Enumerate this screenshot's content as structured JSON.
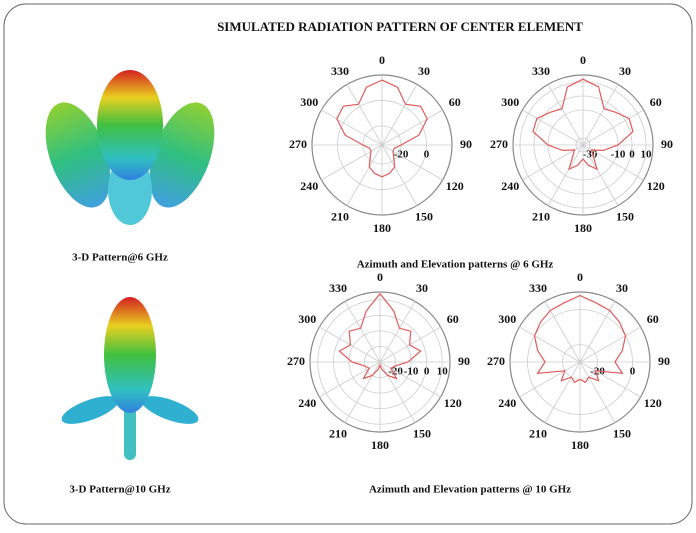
{
  "title": "SIMULATED RADIATION PATTERN OF CENTER ELEMENT",
  "captions": {
    "pattern3d_6": "3-D Pattern@6 GHz",
    "polar_6": "Azimuth and Elevation patterns @ 6 GHz",
    "pattern3d_10": "3-D Pattern@10 GHz",
    "polar_10": "Azimuth and Elevation patterns @ 10 GHz"
  },
  "chart_data": [
    {
      "type": "polar",
      "angles": [
        0,
        30,
        60,
        90,
        120,
        150,
        180,
        210,
        240,
        270,
        300,
        330
      ],
      "rlim": [
        -35,
        20
      ],
      "rticks": [
        -20,
        0
      ],
      "series": [
        {
          "color": "#e05a5a",
          "theta": [
            0,
            15,
            30,
            45,
            60,
            75,
            90,
            105,
            120,
            135,
            150,
            165,
            180,
            195,
            210,
            225,
            240,
            255,
            270,
            285,
            300,
            315,
            330,
            345
          ],
          "values": [
            16,
            12,
            2,
            8,
            6,
            -5,
            -20,
            -25,
            -25,
            -22,
            -15,
            -12,
            -10,
            -12,
            -15,
            -22,
            -25,
            -25,
            -20,
            -5,
            6,
            8,
            2,
            12
          ]
        }
      ]
    },
    {
      "type": "polar",
      "angles": [
        0,
        30,
        60,
        90,
        120,
        150,
        180,
        210,
        240,
        270,
        300,
        330
      ],
      "rlim": [
        -35,
        15
      ],
      "rticks": [
        -30,
        -10,
        0,
        10
      ],
      "series": [
        {
          "color": "#e05a5a",
          "theta": [
            0,
            15,
            30,
            45,
            60,
            75,
            90,
            105,
            120,
            135,
            150,
            165,
            180,
            195,
            210,
            225,
            240,
            255,
            270,
            285,
            300,
            315,
            330,
            345
          ],
          "values": [
            12,
            8,
            -5,
            -2,
            3,
            2,
            -10,
            -20,
            -28,
            -25,
            -15,
            -20,
            -25,
            -20,
            -15,
            -25,
            -28,
            -20,
            -10,
            2,
            3,
            -2,
            -5,
            8
          ]
        }
      ]
    },
    {
      "type": "polar",
      "angles": [
        0,
        30,
        60,
        90,
        120,
        150,
        180,
        210,
        240,
        270,
        300,
        330
      ],
      "rlim": [
        -30,
        15
      ],
      "rticks": [
        -20,
        -10,
        0,
        10
      ],
      "series": [
        {
          "color": "#e05a5a",
          "theta": [
            0,
            15,
            30,
            45,
            60,
            75,
            90,
            105,
            120,
            135,
            150,
            165,
            180,
            195,
            210,
            225,
            240,
            255,
            270,
            285,
            300,
            315,
            330,
            345
          ],
          "values": [
            14,
            4,
            -5,
            -2,
            -8,
            -3,
            -12,
            -20,
            -22,
            -15,
            -20,
            -25,
            -28,
            -25,
            -20,
            -15,
            -22,
            -20,
            -12,
            -3,
            -8,
            -2,
            -5,
            4
          ]
        }
      ]
    },
    {
      "type": "polar",
      "angles": [
        0,
        30,
        60,
        90,
        120,
        150,
        180,
        210,
        240,
        270,
        300,
        330
      ],
      "rlim": [
        -30,
        10
      ],
      "rticks": [
        -20,
        0
      ],
      "series": [
        {
          "color": "#e05a5a",
          "theta": [
            0,
            15,
            30,
            45,
            60,
            75,
            90,
            105,
            120,
            135,
            150,
            165,
            180,
            195,
            210,
            225,
            240,
            255,
            270,
            285,
            300,
            315,
            330,
            345
          ],
          "values": [
            8,
            5,
            4,
            2,
            0,
            -5,
            -10,
            -5,
            -20,
            -15,
            -20,
            -18,
            -20,
            -18,
            -20,
            -15,
            -20,
            -5,
            -10,
            -5,
            0,
            2,
            4,
            5
          ]
        }
      ]
    }
  ]
}
